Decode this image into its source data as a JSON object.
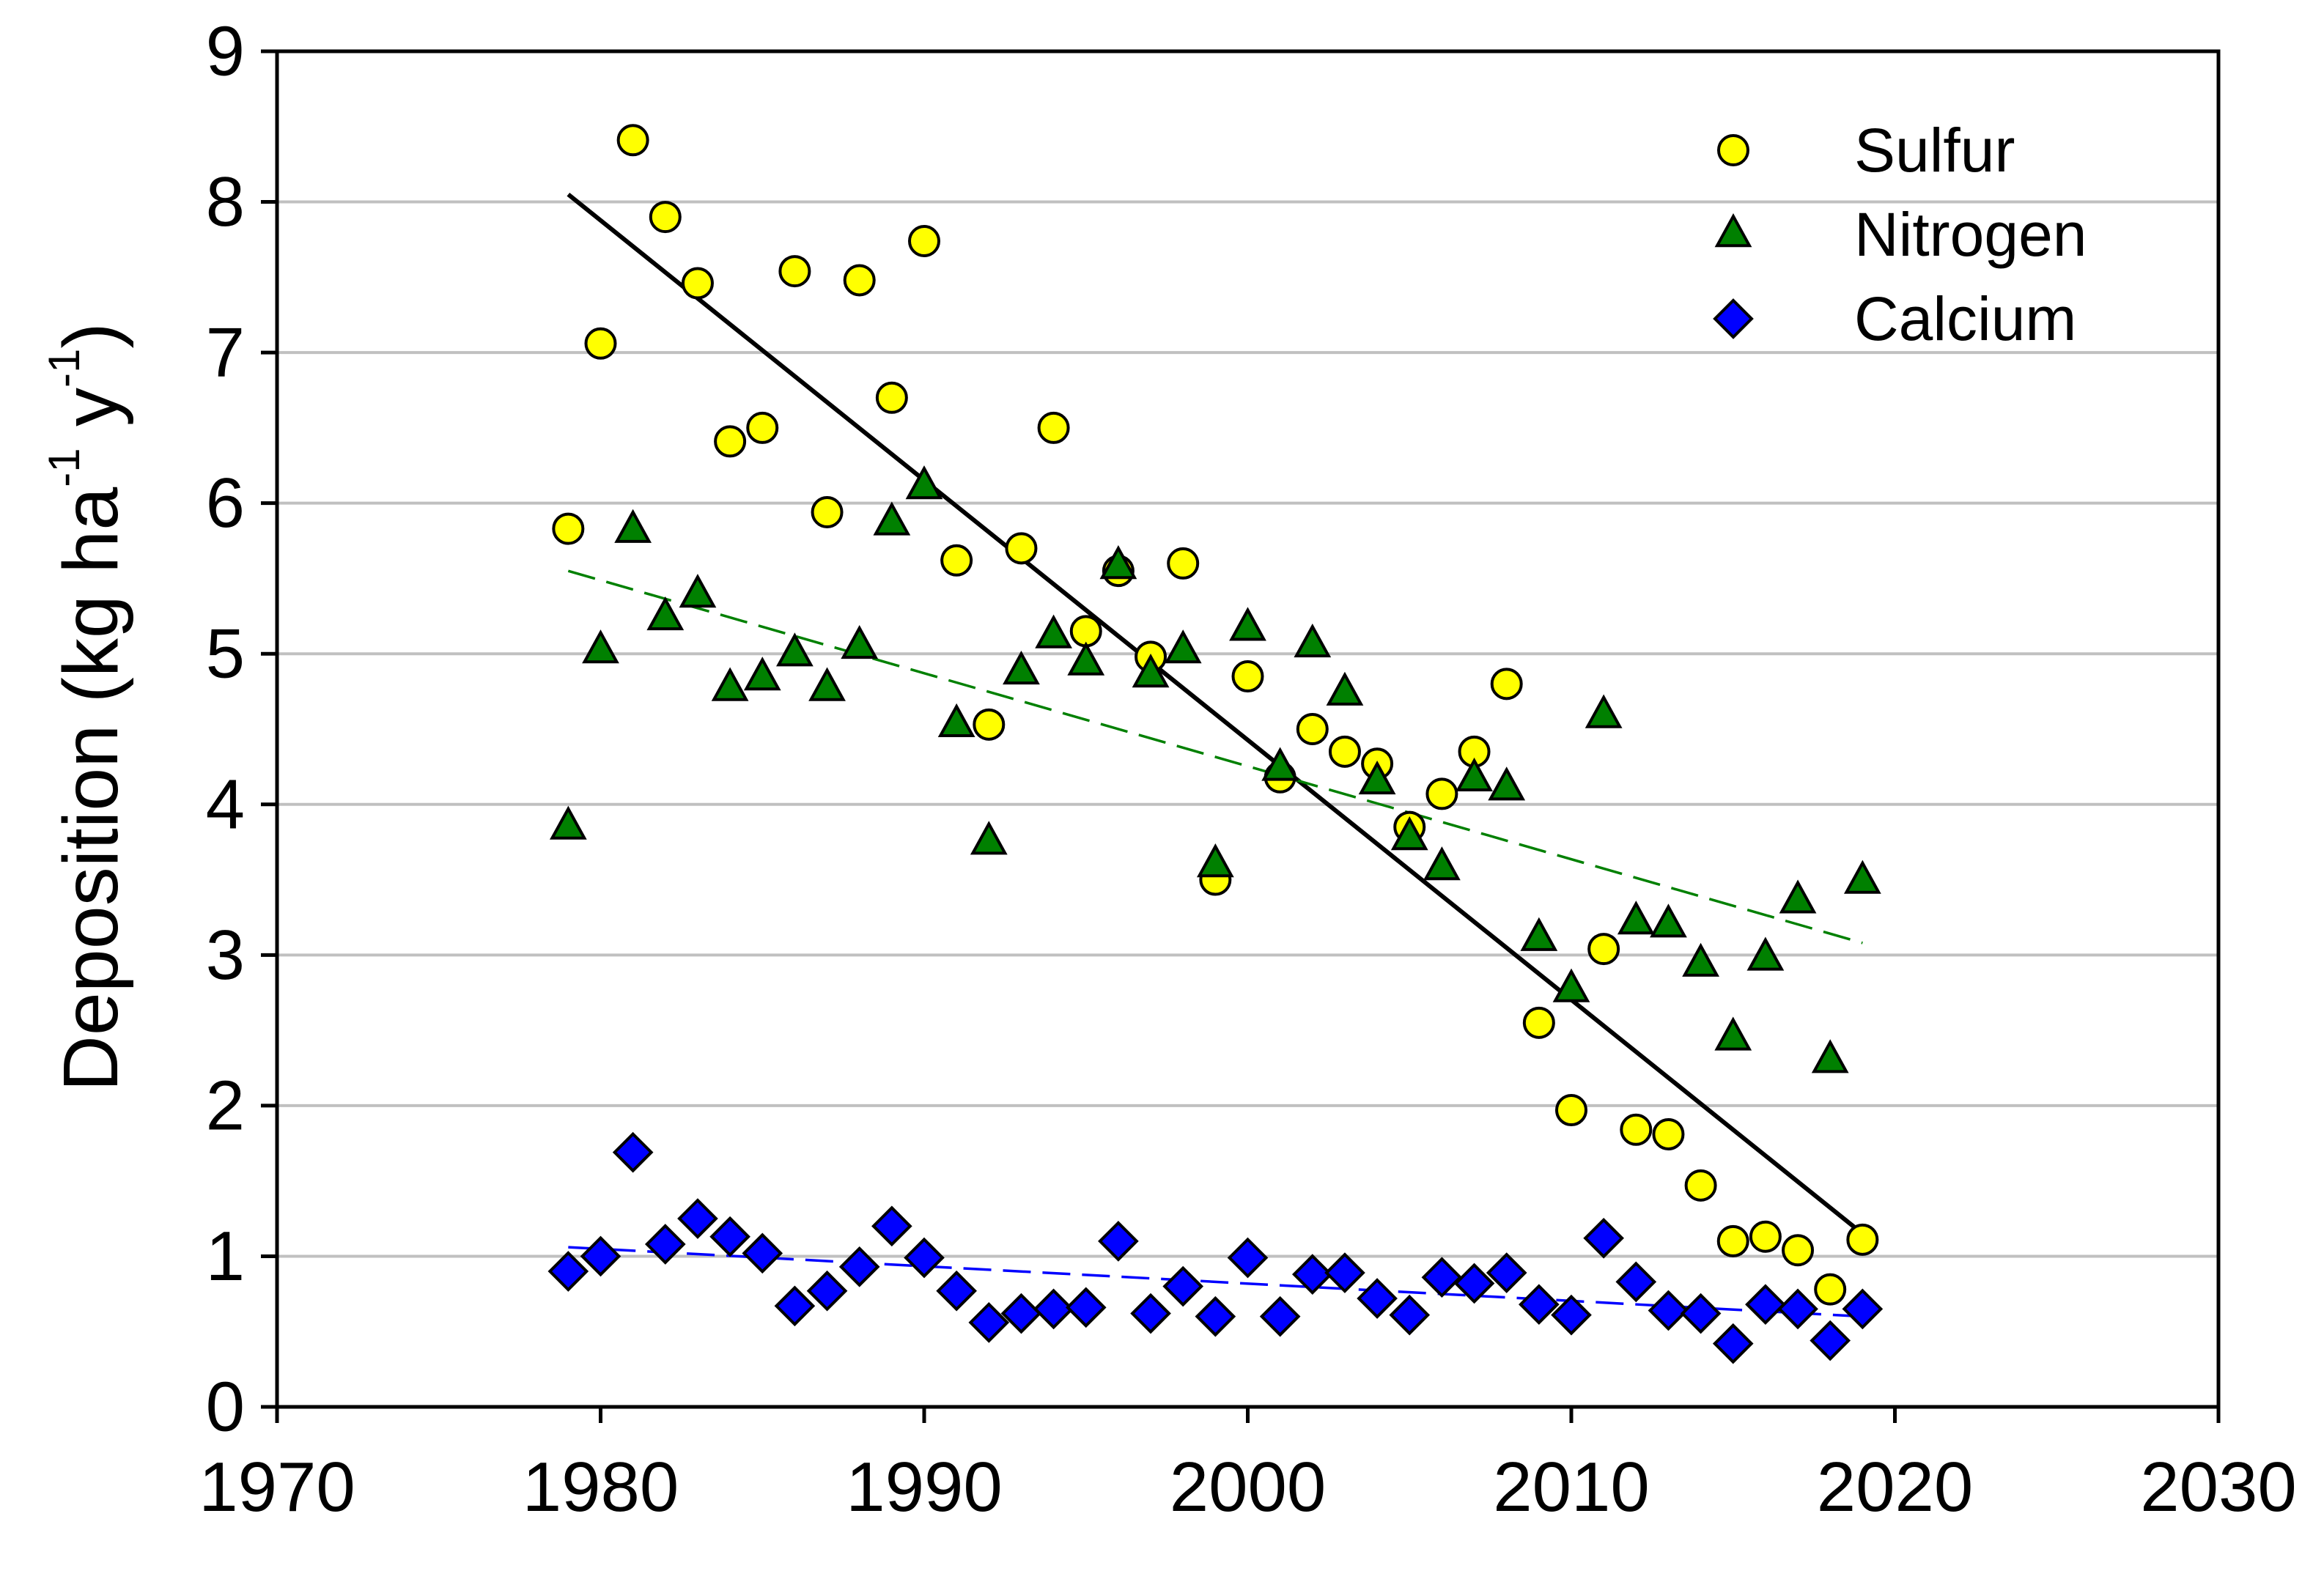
{
  "chart_data": {
    "type": "scatter",
    "title": "",
    "xlabel": "",
    "ylabel": "Deposition (kg ha",
    "ylabel_sup1": "-1",
    "ylabel_mid": " y",
    "ylabel_sup2": "-1",
    "ylabel_end": ")",
    "xlim": [
      1970,
      2030
    ],
    "ylim": [
      0,
      9
    ],
    "xticks": [
      "1970",
      "1980",
      "1990",
      "2000",
      "2010",
      "2020",
      "2030"
    ],
    "yticks": [
      "0",
      "1",
      "2",
      "3",
      "4",
      "5",
      "6",
      "7",
      "8",
      "9"
    ],
    "grid": "horizontal",
    "legend": "top-right",
    "x": [
      1979,
      1980,
      1981,
      1982,
      1983,
      1984,
      1985,
      1986,
      1987,
      1988,
      1989,
      1990,
      1991,
      1992,
      1993,
      1994,
      1995,
      1996,
      1997,
      1998,
      1999,
      2000,
      2001,
      2002,
      2003,
      2004,
      2005,
      2006,
      2007,
      2008,
      2009,
      2010,
      2011,
      2012,
      2013,
      2014,
      2015,
      2016,
      2017,
      2018,
      2019
    ],
    "series": [
      {
        "name": "Sulfur",
        "marker": "circle",
        "color": "#ffff00",
        "values": [
          5.83,
          7.06,
          8.41,
          7.9,
          7.46,
          6.41,
          6.5,
          7.54,
          5.94,
          7.48,
          6.7,
          7.74,
          5.62,
          4.53,
          5.7,
          6.5,
          5.15,
          5.55,
          4.98,
          5.6,
          3.5,
          4.85,
          4.18,
          4.5,
          4.35,
          4.27,
          3.85,
          4.07,
          4.35,
          4.8,
          2.55,
          1.97,
          3.04,
          1.84,
          1.81,
          1.47,
          1.1,
          1.13,
          1.04,
          0.78,
          1.11
        ],
        "trend": {
          "style": "solid",
          "color": "#000000",
          "start": [
            1979,
            8.05
          ],
          "end": [
            2019,
            1.15
          ]
        }
      },
      {
        "name": "Nitrogen",
        "marker": "triangle",
        "color": "#008000",
        "values": [
          3.85,
          5.02,
          5.82,
          5.24,
          5.39,
          4.77,
          4.84,
          5.0,
          4.77,
          5.05,
          5.87,
          6.11,
          4.53,
          3.75,
          4.88,
          5.12,
          4.94,
          5.58,
          4.86,
          5.02,
          3.6,
          5.17,
          4.24,
          5.06,
          4.74,
          4.15,
          3.78,
          3.58,
          4.17,
          4.11,
          3.11,
          2.77,
          4.59,
          3.22,
          3.2,
          2.94,
          2.45,
          2.98,
          3.36,
          2.3,
          3.49
        ],
        "trend": {
          "style": "dashed",
          "color": "#008000",
          "start": [
            1979,
            5.55
          ],
          "end": [
            2019,
            3.08
          ]
        }
      },
      {
        "name": "Calcium",
        "marker": "diamond",
        "color": "#0000ff",
        "values": [
          0.9,
          1.0,
          1.69,
          1.08,
          1.25,
          1.13,
          1.02,
          0.67,
          0.77,
          0.93,
          1.2,
          0.99,
          0.77,
          0.56,
          0.62,
          0.65,
          0.66,
          1.1,
          0.62,
          0.8,
          0.6,
          0.99,
          0.6,
          0.88,
          0.89,
          0.72,
          0.61,
          0.86,
          0.82,
          0.89,
          0.68,
          0.61,
          1.12,
          0.83,
          0.64,
          0.62,
          0.42,
          0.68,
          0.65,
          0.44,
          0.65
        ],
        "trend": {
          "style": "dashed",
          "color": "#0000ff",
          "start": [
            1979,
            1.06
          ],
          "end": [
            2019,
            0.6
          ]
        }
      }
    ]
  }
}
